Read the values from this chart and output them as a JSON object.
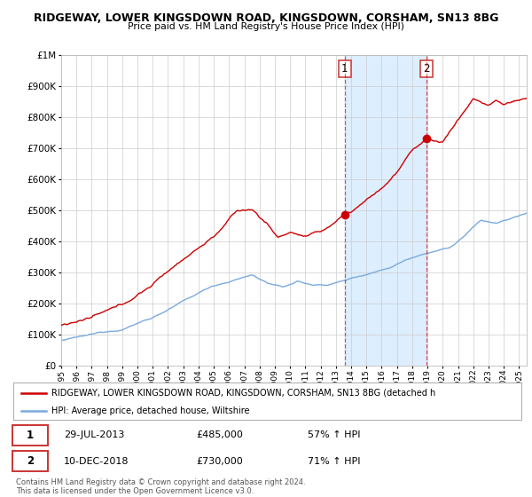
{
  "title": "RIDGEWAY, LOWER KINGSDOWN ROAD, KINGSDOWN, CORSHAM, SN13 8BG",
  "subtitle": "Price paid vs. HM Land Registry's House Price Index (HPI)",
  "legend_line1": "RIDGEWAY, LOWER KINGSDOWN ROAD, KINGSDOWN, CORSHAM, SN13 8BG (detached h",
  "legend_line2": "HPI: Average price, detached house, Wiltshire",
  "sale1_date": "29-JUL-2013",
  "sale1_price": "£485,000",
  "sale1_hpi": "57% ↑ HPI",
  "sale1_year": 2013.57,
  "sale1_value": 485000,
  "sale2_date": "10-DEC-2018",
  "sale2_price": "£730,000",
  "sale2_hpi": "71% ↑ HPI",
  "sale2_year": 2018.94,
  "sale2_value": 730000,
  "hpi_color": "#7aaadd",
  "price_color": "#cc0000",
  "shading_color": "#ddeeff",
  "ylim_min": 0,
  "ylim_max": 1000000,
  "xlim_min": 1995.0,
  "xlim_max": 2025.5,
  "yticks": [
    0,
    100000,
    200000,
    300000,
    400000,
    500000,
    600000,
    700000,
    800000,
    900000,
    1000000
  ],
  "ytick_labels": [
    "£0",
    "£100K",
    "£200K",
    "£300K",
    "£400K",
    "£500K",
    "£600K",
    "£700K",
    "£800K",
    "£900K",
    "£1M"
  ],
  "background_color": "#ffffff",
  "footer": "Contains HM Land Registry data © Crown copyright and database right 2024.\nThis data is licensed under the Open Government Licence v3.0."
}
